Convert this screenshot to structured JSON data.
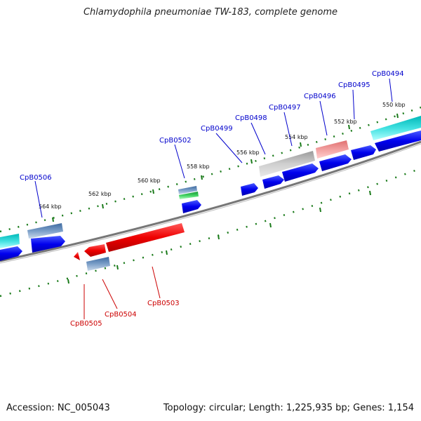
{
  "title": "Chlamydophila pneumoniae TW-183, complete genome",
  "footer": {
    "accession": "Accession: NC_005043",
    "summary": "Topology: circular; Length: 1,225,935 bp; Genes: 1,154"
  },
  "colors": {
    "forward_label": "#0000cc",
    "reverse_label": "#cc0000",
    "backbone": "#777777",
    "tick": "#1a7a1a"
  },
  "ruler_labels": [
    "550 kbp",
    "552 kbp",
    "554 kbp",
    "556 kbp",
    "558 kbp",
    "560 kbp",
    "562 kbp",
    "564 kbp"
  ],
  "forward_gene_labels": [
    "CpB0494",
    "CpB0495",
    "CpB0496",
    "CpB0497",
    "CpB0498",
    "CpB0499",
    "CpB0502",
    "CpB0506"
  ],
  "reverse_gene_labels": [
    "CpB0503",
    "CpB0504",
    "CpB0505"
  ]
}
